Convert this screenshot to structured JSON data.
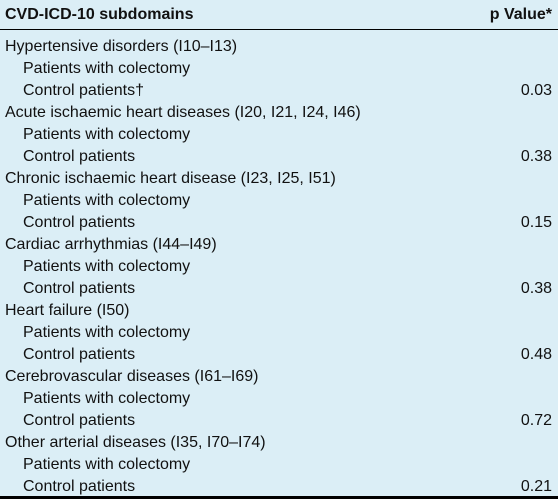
{
  "header": {
    "col1": "CVD-ICD-10 subdomains",
    "col2": "p Value*"
  },
  "groups": [
    {
      "domain": "Hypertensive disorders (I10–I13)",
      "sub1": "Patients with colectomy",
      "sub2": "Control patients†",
      "p": "0.03"
    },
    {
      "domain": "Acute ischaemic heart diseases (I20, I21, I24, I46)",
      "sub1": "Patients with colectomy",
      "sub2": "Control patients",
      "p": "0.38"
    },
    {
      "domain": "Chronic ischaemic heart disease (I23, I25, I51)",
      "sub1": "Patients with colectomy",
      "sub2": "Control patients",
      "p": "0.15"
    },
    {
      "domain": "Cardiac arrhythmias (I44–I49)",
      "sub1": "Patients with colectomy",
      "sub2": "Control patients",
      "p": "0.38"
    },
    {
      "domain": "Heart failure (I50)",
      "sub1": "Patients with colectomy",
      "sub2": "Control patients",
      "p": "0.48"
    },
    {
      "domain": "Cerebrovascular diseases (I61–I69)",
      "sub1": "Patients with colectomy",
      "sub2": "Control patients",
      "p": "0.72"
    },
    {
      "domain": "Other arterial diseases (I35, I70–I74)",
      "sub1": "Patients with colectomy",
      "sub2": "Control patients",
      "p": "0.21"
    }
  ]
}
